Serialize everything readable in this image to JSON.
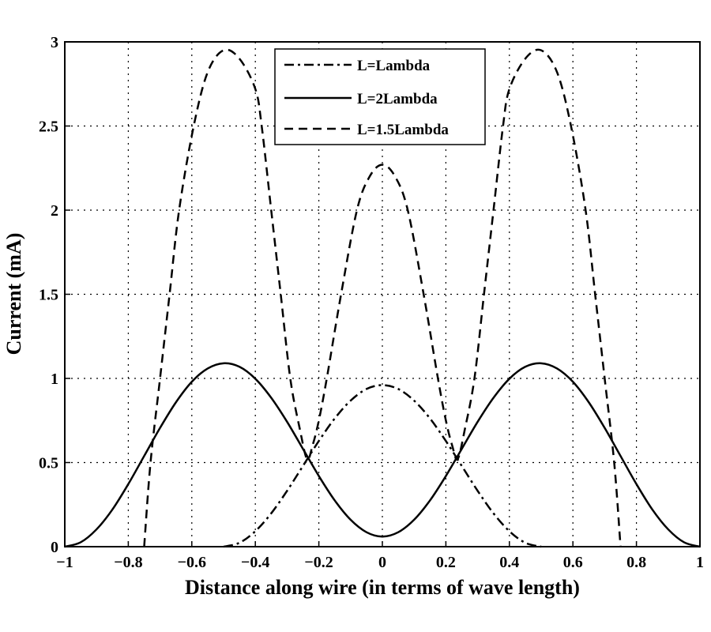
{
  "chart_data": {
    "type": "line",
    "title": "",
    "xlabel": "Distance along wire (in terms of wave length)",
    "ylabel": "Current (mA)",
    "xlim": [
      -1,
      1
    ],
    "ylim": [
      0,
      3
    ],
    "xticks": [
      "−1",
      "−0.8",
      "−0.6",
      "−0.4",
      "−0.2",
      "0",
      "0.2",
      "0.4",
      "0.6",
      "0.8",
      "1"
    ],
    "xtick_values": [
      -1,
      -0.8,
      -0.6,
      -0.4,
      -0.2,
      0,
      0.2,
      0.4,
      0.6,
      0.8,
      1
    ],
    "yticks": [
      "0",
      "0.5",
      "1",
      "1.5",
      "2",
      "2.5",
      "3"
    ],
    "ytick_values": [
      0,
      0.5,
      1,
      1.5,
      2,
      2.5,
      3
    ],
    "grid": true,
    "legend_position": "top-center",
    "series": [
      {
        "name": "L=Lambda",
        "style": "dash-dot",
        "color": "#000000",
        "x": [
          -0.5,
          -0.45,
          -0.4,
          -0.35,
          -0.3,
          -0.25,
          -0.2,
          -0.15,
          -0.1,
          -0.05,
          0,
          0.05,
          0.1,
          0.15,
          0.2,
          0.25,
          0.3,
          0.35,
          0.4,
          0.45,
          0.5
        ],
        "y": [
          0,
          0.023,
          0.092,
          0.198,
          0.332,
          0.48,
          0.628,
          0.762,
          0.868,
          0.937,
          0.96,
          0.937,
          0.868,
          0.762,
          0.628,
          0.48,
          0.332,
          0.198,
          0.092,
          0.023,
          0
        ]
      },
      {
        "name": "L=2Lambda",
        "style": "solid",
        "color": "#000000",
        "x": [
          -1,
          -0.95,
          -0.9,
          -0.85,
          -0.8,
          -0.75,
          -0.7,
          -0.65,
          -0.6,
          -0.55,
          -0.5,
          -0.45,
          -0.4,
          -0.35,
          -0.3,
          -0.25,
          -0.2,
          -0.15,
          -0.1,
          -0.05,
          0,
          0.05,
          0.1,
          0.15,
          0.2,
          0.25,
          0.3,
          0.35,
          0.4,
          0.45,
          0.5,
          0.55,
          0.6,
          0.65,
          0.7,
          0.75,
          0.8,
          0.85,
          0.9,
          0.95,
          1
        ],
        "y": [
          0,
          0.026,
          0.103,
          0.221,
          0.372,
          0.539,
          0.706,
          0.858,
          0.98,
          1.059,
          1.09,
          1.069,
          0.998,
          0.885,
          0.742,
          0.581,
          0.42,
          0.275,
          0.16,
          0.086,
          0.06,
          0.086,
          0.16,
          0.275,
          0.42,
          0.581,
          0.742,
          0.885,
          0.998,
          1.069,
          1.09,
          1.059,
          0.98,
          0.858,
          0.706,
          0.539,
          0.372,
          0.221,
          0.103,
          0.026,
          0
        ]
      },
      {
        "name": "L=1.5Lambda",
        "style": "dashed",
        "color": "#000000",
        "x": [
          -0.75,
          -0.73,
          -0.7,
          -0.67,
          -0.64,
          -0.594,
          -0.55,
          -0.5,
          -0.45,
          -0.4,
          -0.38,
          -0.35,
          -0.32,
          -0.29,
          -0.26,
          -0.237,
          -0.22,
          -0.2,
          -0.175,
          -0.13,
          -0.08,
          -0.04,
          0,
          0.04,
          0.08,
          0.13,
          0.175,
          0.2,
          0.22,
          0.237,
          0.26,
          0.29,
          0.32,
          0.35,
          0.38,
          0.4,
          0.45,
          0.5,
          0.55,
          0.594,
          0.64,
          0.67,
          0.7,
          0.73,
          0.75
        ],
        "y": [
          0,
          0.5,
          1.0,
          1.5,
          2.0,
          2.5,
          2.82,
          2.95,
          2.9,
          2.72,
          2.5,
          2.0,
          1.5,
          1.0,
          0.7,
          0.52,
          0.6,
          0.75,
          1.0,
          1.5,
          2.0,
          2.2,
          2.27,
          2.2,
          2.0,
          1.5,
          1.0,
          0.75,
          0.6,
          0.52,
          0.7,
          1.0,
          1.5,
          2.0,
          2.5,
          2.72,
          2.9,
          2.95,
          2.82,
          2.5,
          2.0,
          1.5,
          1.0,
          0.5,
          0
        ]
      }
    ]
  }
}
